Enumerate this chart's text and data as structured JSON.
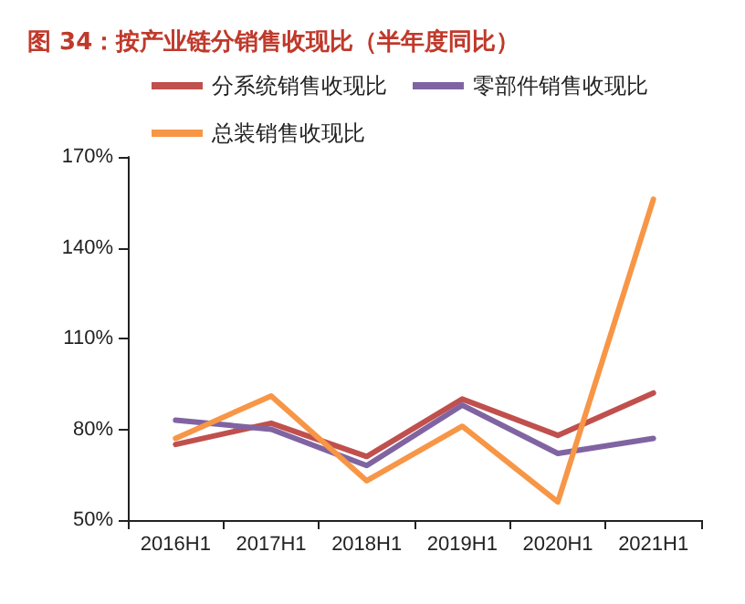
{
  "chart_data": {
    "type": "line",
    "title": "图 34：按产业链分销售收现比（半年度同比）",
    "categories": [
      "2016H1",
      "2017H1",
      "2018H1",
      "2019H1",
      "2020H1",
      "2021H1"
    ],
    "series": [
      {
        "name": "分系统销售收现比",
        "color": "#c0504d",
        "values": [
          75,
          82,
          71,
          90,
          78,
          92
        ]
      },
      {
        "name": "零部件销售收现比",
        "color": "#8064a2",
        "values": [
          83,
          80,
          68,
          88,
          72,
          77
        ]
      },
      {
        "name": "总装销售收现比",
        "color": "#f79646",
        "values": [
          77,
          91,
          63,
          81,
          56,
          156
        ]
      }
    ],
    "ylim": [
      50,
      170
    ],
    "yticks": [
      {
        "value": 50,
        "label": "50%"
      },
      {
        "value": 80,
        "label": "80%"
      },
      {
        "value": 110,
        "label": "110%"
      },
      {
        "value": 140,
        "label": "140%"
      },
      {
        "value": 170,
        "label": "170%"
      }
    ],
    "grid": false,
    "legend": "top",
    "marker": "none",
    "line_style": "solid"
  }
}
